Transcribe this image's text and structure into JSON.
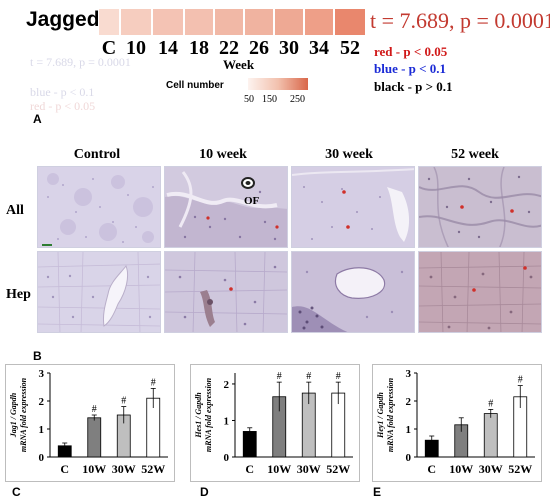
{
  "panel_a": {
    "letter": "A",
    "gene": "Jagged1",
    "stat": "t = 7.689, p = 0.0001",
    "stat_color": "#c33a30",
    "week_ticks": [
      "C",
      "10",
      "14",
      "18",
      "22",
      "26",
      "30",
      "34",
      "52"
    ],
    "week_label": "Week",
    "cell_colors": [
      "#f9dbd0",
      "#f6cdbf",
      "#f4c3b4",
      "#f3c0b0",
      "#f1b8a6",
      "#f0b3a0",
      "#eea994",
      "#ee9f88",
      "#e9876d"
    ],
    "ghost_lines": [
      "t = 7.689, p = 0.0001",
      "blue - p < 0.1",
      "red - p < 0.05"
    ],
    "legend": [
      {
        "text": "red - p < 0.05",
        "color": "#d01818"
      },
      {
        "text": "blue - p < 0.1",
        "color": "#1b2bd6"
      },
      {
        "text": "black - p > 0.1",
        "color": "#000000"
      }
    ],
    "colorbar_label": "Cell number",
    "colorbar_ticks": [
      "50",
      "150",
      "250"
    ]
  },
  "panel_b": {
    "letter": "B",
    "columns": [
      "Control",
      "10 week",
      "30 week",
      "52 week"
    ],
    "rows": [
      "All",
      "Hep"
    ],
    "of_label": "OF"
  },
  "charts": [
    {
      "letter": "C",
      "type": "bar",
      "ylabel_lines": [
        "Jag1 / Gapdh",
        "mRNA fold expression"
      ],
      "yticks": [
        "0",
        "1",
        "2",
        "3"
      ],
      "ylim": [
        0,
        3
      ],
      "categories": [
        "C",
        "10W",
        "30W",
        "52W"
      ],
      "values": [
        0.4,
        1.4,
        1.5,
        2.1
      ],
      "errors": [
        0.1,
        0.1,
        0.3,
        0.35
      ],
      "sig": [
        "",
        "#",
        "#",
        "#"
      ],
      "colors": [
        "#000000",
        "#7f7f7f",
        "#bfbfbf",
        "#ffffff"
      ]
    },
    {
      "letter": "D",
      "type": "bar",
      "ylabel_lines": [
        "Hes1 / Gapdh",
        "mRNA fold expression"
      ],
      "yticks": [
        "0",
        "1",
        "2"
      ],
      "ylim": [
        0,
        2.3
      ],
      "categories": [
        "C",
        "10W",
        "30W",
        "52W"
      ],
      "values": [
        0.7,
        1.65,
        1.75,
        1.75
      ],
      "errors": [
        0.1,
        0.4,
        0.3,
        0.3
      ],
      "sig": [
        "",
        "#",
        "#",
        "#"
      ],
      "colors": [
        "#000000",
        "#7f7f7f",
        "#bfbfbf",
        "#ffffff"
      ]
    },
    {
      "letter": "E",
      "type": "bar",
      "ylabel_lines": [
        "Hey1 / Gapdh",
        "mRNA fold expression"
      ],
      "yticks": [
        "0",
        "1",
        "2",
        "3"
      ],
      "ylim": [
        0,
        3
      ],
      "categories": [
        "C",
        "10W",
        "30W",
        "52W"
      ],
      "values": [
        0.6,
        1.15,
        1.55,
        2.15
      ],
      "errors": [
        0.15,
        0.25,
        0.15,
        0.4
      ],
      "sig": [
        "",
        "",
        "#",
        "#"
      ],
      "colors": [
        "#000000",
        "#7f7f7f",
        "#bfbfbf",
        "#ffffff"
      ]
    }
  ]
}
